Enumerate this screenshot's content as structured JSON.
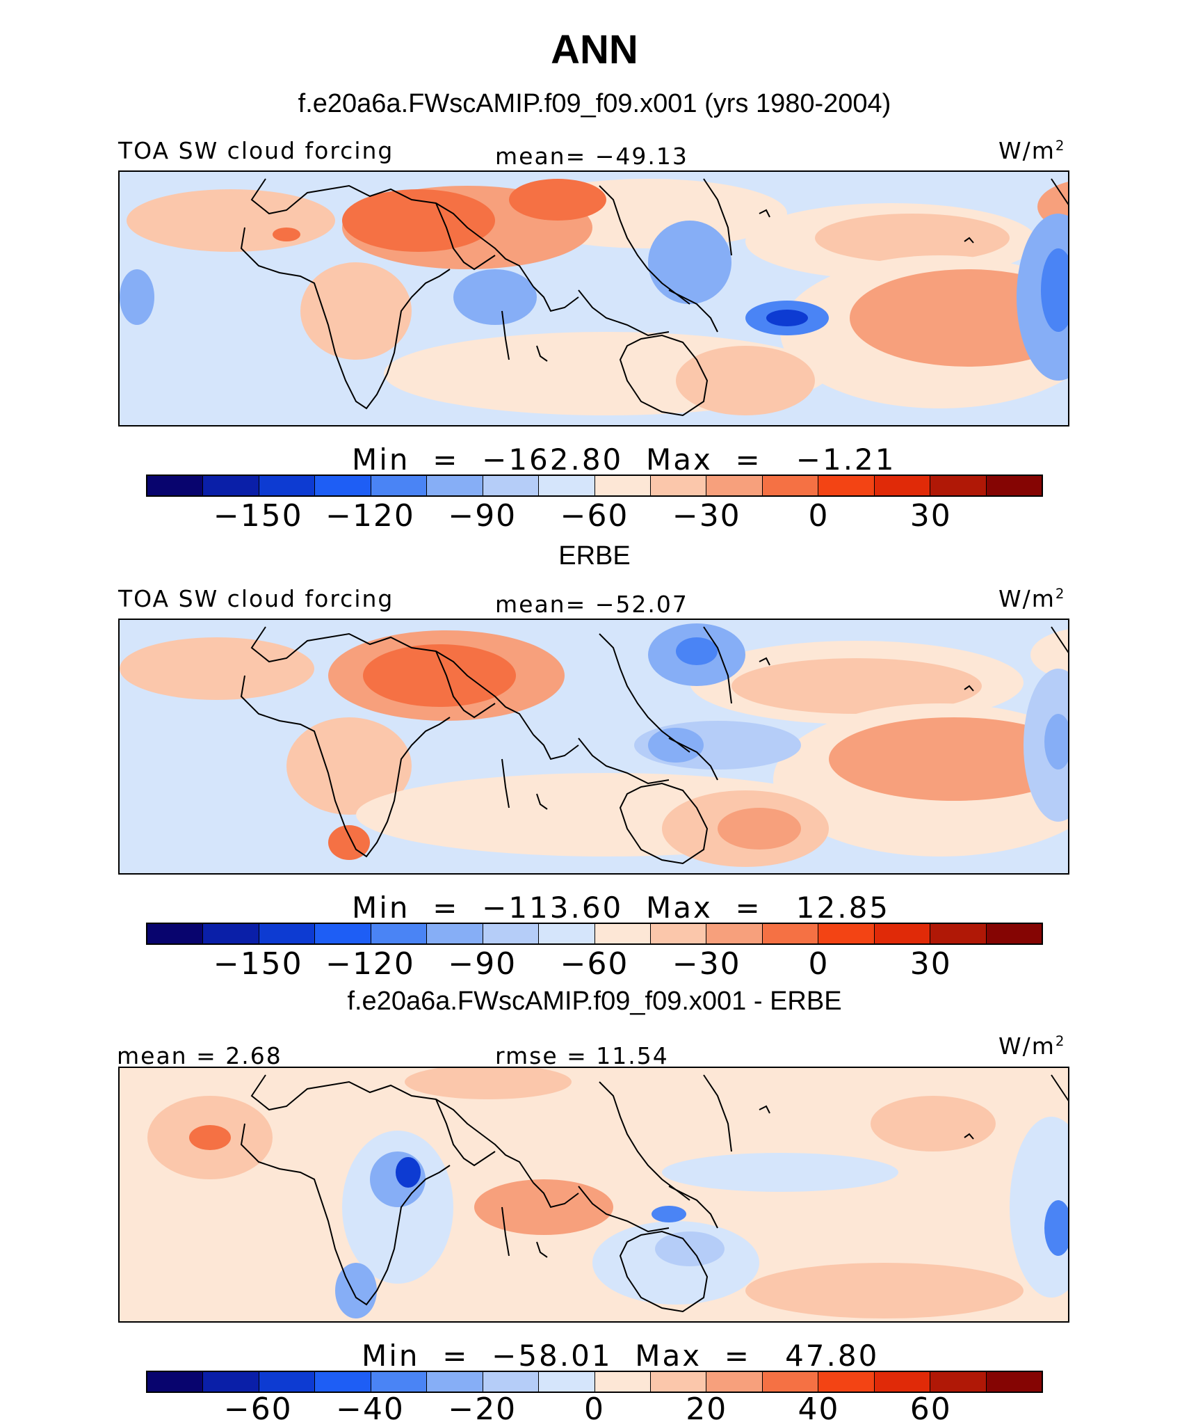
{
  "header": {
    "title": "ANN",
    "model_subtitle": "f.e20a6a.FWscAMIP.f09_f09.x001 (yrs 1980-2004)"
  },
  "colorbar_colors": [
    "#08046e",
    "#0a1fa8",
    "#0d3bd2",
    "#1e5ef5",
    "#4a84f5",
    "#86aef6",
    "#b5cdf8",
    "#d5e5fb",
    "#fde7d6",
    "#fbc7ab",
    "#f7a07c",
    "#f57144",
    "#f34414",
    "#e02a08",
    "#b01806",
    "#850503"
  ],
  "chart_data": [
    {
      "type": "heatmap",
      "panel": "model",
      "variable": "TOA SW cloud forcing",
      "units_base": "W/m",
      "units_exp": "2",
      "mean_text": "mean=  −49.13",
      "min_label": "Min",
      "min_value": "−162.80",
      "max_label": "Max",
      "max_value": "−1.21",
      "min": -162.8,
      "max": -1.21,
      "colorbar_ticks": [
        "−150",
        "−120",
        "−90",
        "−60",
        "−30",
        "0",
        "30"
      ],
      "colorbar_levels": [
        -150,
        -120,
        -90,
        -60,
        -30,
        0,
        30
      ]
    },
    {
      "type": "heatmap",
      "panel": "observations",
      "title": "ERBE",
      "variable": "TOA SW cloud forcing",
      "units_base": "W/m",
      "units_exp": "2",
      "mean_text": "mean=  −52.07",
      "min_label": "Min",
      "min_value": "−113.60",
      "max_label": "Max",
      "max_value": "12.85",
      "min": -113.6,
      "max": 12.85,
      "colorbar_ticks": [
        "−150",
        "−120",
        "−90",
        "−60",
        "−30",
        "0",
        "30"
      ],
      "colorbar_levels": [
        -150,
        -120,
        -90,
        -60,
        -30,
        0,
        30
      ]
    },
    {
      "type": "heatmap",
      "panel": "difference",
      "title": "f.e20a6a.FWscAMIP.f09_f09.x001 - ERBE",
      "units_base": "W/m",
      "units_exp": "2",
      "mean_text": "mean =   2.68",
      "rmse_text": "rmse =   11.54",
      "min_label": "Min",
      "min_value": "−58.01",
      "max_label": "Max",
      "max_value": "47.80",
      "min": -58.01,
      "max": 47.8,
      "colorbar_ticks": [
        "−60",
        "−40",
        "−20",
        "0",
        "20",
        "40",
        "60"
      ],
      "colorbar_levels": [
        -60,
        -40,
        -20,
        0,
        20,
        40,
        60
      ]
    }
  ]
}
